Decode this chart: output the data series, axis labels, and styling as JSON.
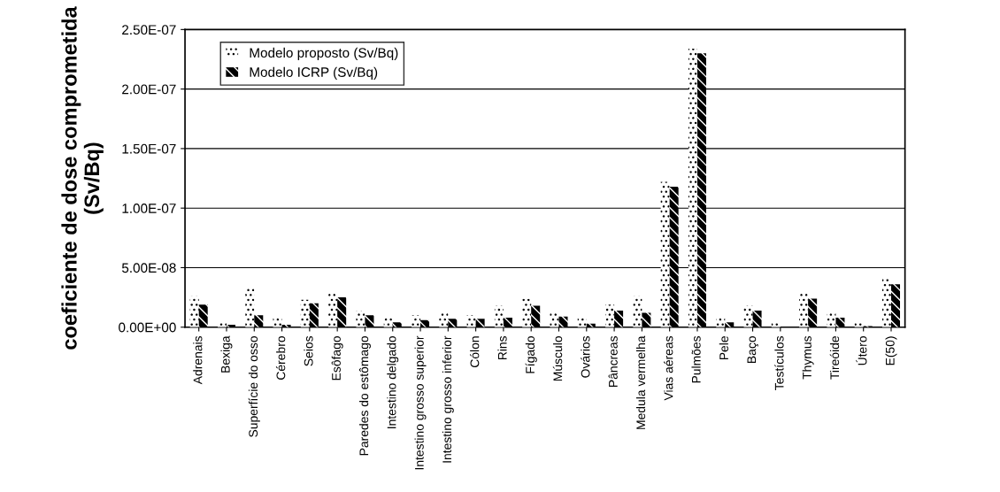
{
  "chart_data": {
    "type": "bar",
    "ylabel": "coeficiente de dose comprometida\n(Sv/Bq)",
    "categories": [
      "Adrenais",
      "Bexiga",
      "Superfície do osso",
      "Cérebro",
      "Seios",
      "Esôfago",
      "Paredes do estômago",
      "Intestino delgado",
      "Intestino grosso superior",
      "Intestino grosso inferior",
      "Cólon",
      "Rins",
      "Fígado",
      "Músculo",
      "Ovários",
      "Pâncreas",
      "Medula vermelha",
      "Vias aéreas",
      "Pulmões",
      "Pele",
      "Baço",
      "Testículos",
      "Thymus",
      "Tireóide",
      "Útero",
      "E(50)"
    ],
    "series": [
      {
        "name": "Modelo proposto (Sv/Bq)",
        "color": "#ffffff",
        "values": [
          2.6e-08,
          4e-09,
          3.4e-08,
          8e-09,
          2.3e-08,
          2.8e-08,
          1.4e-08,
          8e-09,
          1e-08,
          1.3e-08,
          1e-08,
          1.8e-08,
          2.4e-08,
          1.2e-08,
          8e-09,
          1.9e-08,
          2.6e-08,
          1.22e-07,
          2.34e-07,
          8e-09,
          1.8e-08,
          4e-09,
          2.8e-08,
          1.2e-08,
          5e-09,
          4.2e-08
        ]
      },
      {
        "name": "Modelo ICRP (Sv/Bq)",
        "color": "#000000",
        "values": [
          1.9e-08,
          2e-09,
          1e-08,
          2e-09,
          2e-08,
          2.5e-08,
          1e-08,
          4e-09,
          6e-09,
          7e-09,
          7e-09,
          8e-09,
          1.8e-08,
          9e-09,
          3e-09,
          1.4e-08,
          1.2e-08,
          1.18e-07,
          2.3e-07,
          4e-09,
          1.4e-08,
          0,
          2.4e-08,
          8e-09,
          1e-09,
          3.6e-08
        ]
      }
    ],
    "ylim": [
      0,
      2.5e-07
    ],
    "yticks": [
      {
        "value": 0,
        "label": "0.00E+00"
      },
      {
        "value": 5e-08,
        "label": "5.00E-08"
      },
      {
        "value": 1e-07,
        "label": "1.00E-07"
      },
      {
        "value": 1.5e-07,
        "label": "1.50E-07"
      },
      {
        "value": 2e-07,
        "label": "2.00E-07"
      },
      {
        "value": 2.5e-07,
        "label": "2.50E-07"
      }
    ],
    "grid": "y",
    "legend": "top left"
  }
}
